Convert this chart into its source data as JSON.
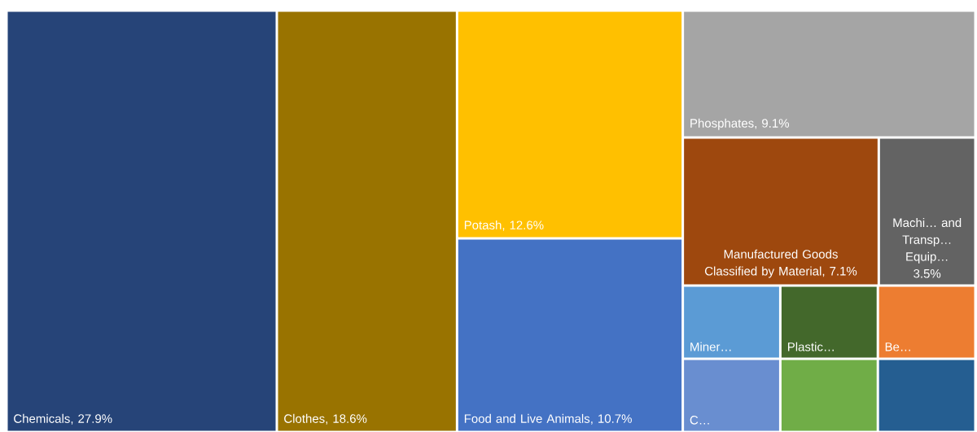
{
  "chart_data": {
    "type": "other",
    "categories": [
      "Chemicals",
      "Clothes",
      "Potash",
      "Food and Live Animals",
      "Phosphates",
      "Manufactured Goods Classified by Material",
      "Machi… and Transp… Equip…",
      "Miner…",
      "Plastic…",
      "Be…",
      "C…",
      null,
      null
    ],
    "values": [
      27.9,
      18.6,
      12.6,
      10.7,
      9.1,
      7.1,
      3.5,
      null,
      null,
      null,
      null,
      null,
      null
    ],
    "value_labels": [
      ", 27.9%",
      ", 18.6%",
      ", 12.6%",
      ", 10.7%",
      ", 9.1%",
      ", 7.1%",
      "3.5%",
      null,
      null,
      null,
      null,
      null,
      null
    ],
    "colors": [
      "#264478",
      "#997300",
      "#ffc000",
      "#4472c4",
      "#a5a5a5",
      "#9e480e",
      "#636363",
      "#5b9bd5",
      "#43682b",
      "#ed7d31",
      "#698ed0",
      "#70ad47",
      "#255e91"
    ]
  }
}
